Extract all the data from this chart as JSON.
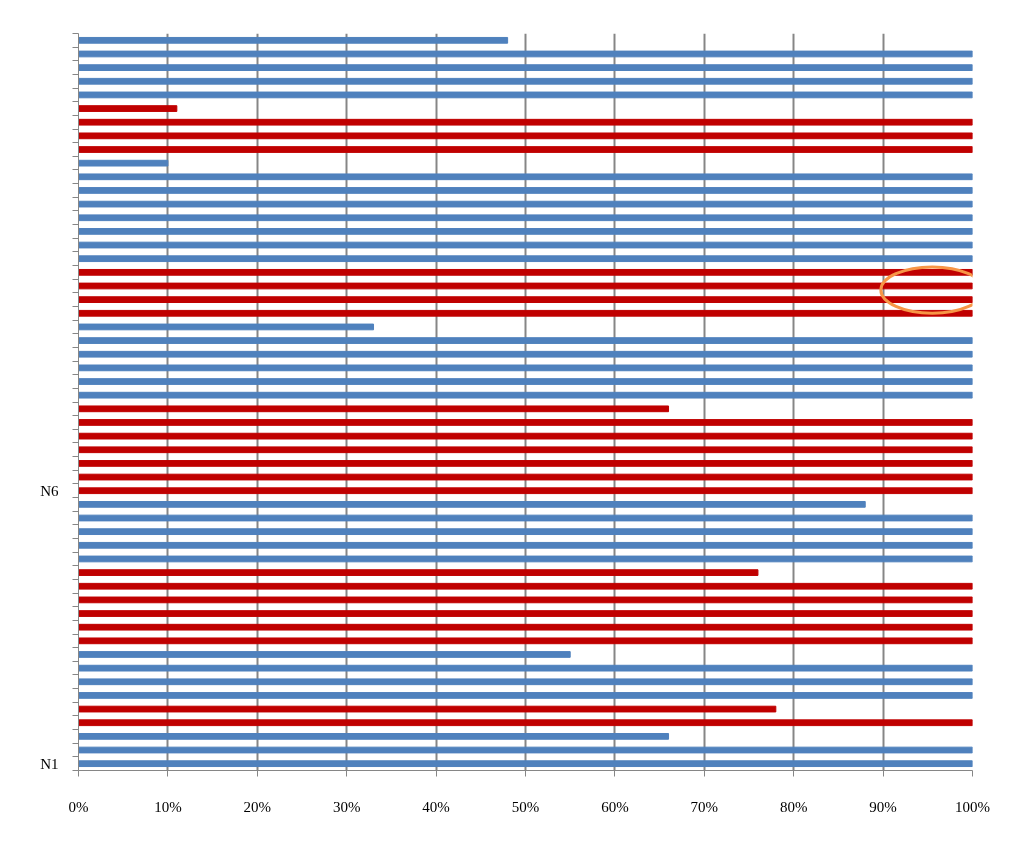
{
  "chart_data": {
    "type": "bar",
    "orientation": "horizontal",
    "categories": [
      null,
      null,
      null,
      null,
      null,
      null,
      null,
      null,
      null,
      null,
      null,
      null,
      null,
      null,
      null,
      null,
      null,
      null,
      null,
      null,
      null,
      null,
      null,
      null,
      null,
      null,
      null,
      null,
      null,
      null,
      null,
      null,
      null,
      "N6",
      null,
      null,
      null,
      null,
      null,
      null,
      null,
      null,
      null,
      null,
      null,
      null,
      null,
      null,
      null,
      null,
      null,
      null,
      null,
      "N1"
    ],
    "values": [
      48,
      100,
      100,
      100,
      100,
      11,
      100,
      100,
      100,
      10,
      100,
      100,
      100,
      100,
      100,
      100,
      100,
      100,
      100,
      100,
      100,
      33,
      100,
      100,
      100,
      100,
      100,
      66,
      100,
      100,
      100,
      100,
      100,
      100,
      88,
      100,
      100,
      100,
      100,
      76,
      100,
      100,
      100,
      100,
      100,
      55,
      100,
      100,
      100,
      78,
      100,
      66,
      100,
      100
    ],
    "colors": [
      "#4f81bd",
      "#4f81bd",
      "#4f81bd",
      "#4f81bd",
      "#4f81bd",
      "#c00000",
      "#c00000",
      "#c00000",
      "#c00000",
      "#4f81bd",
      "#4f81bd",
      "#4f81bd",
      "#4f81bd",
      "#4f81bd",
      "#4f81bd",
      "#4f81bd",
      "#4f81bd",
      "#c00000",
      "#c00000",
      "#c00000",
      "#c00000",
      "#4f81bd",
      "#4f81bd",
      "#4f81bd",
      "#4f81bd",
      "#4f81bd",
      "#4f81bd",
      "#c00000",
      "#c00000",
      "#c00000",
      "#c00000",
      "#c00000",
      "#c00000",
      "#c00000",
      "#4f81bd",
      "#4f81bd",
      "#4f81bd",
      "#4f81bd",
      "#4f81bd",
      "#c00000",
      "#c00000",
      "#c00000",
      "#c00000",
      "#c00000",
      "#c00000",
      "#4f81bd",
      "#4f81bd",
      "#4f81bd",
      "#4f81bd",
      "#c00000",
      "#c00000",
      "#4f81bd",
      "#4f81bd",
      "#4f81bd"
    ],
    "xlim": [
      0,
      100
    ],
    "xticks": [
      {
        "value": 0,
        "label": "0%"
      },
      {
        "value": 10,
        "label": "10%"
      },
      {
        "value": 20,
        "label": "20%"
      },
      {
        "value": 30,
        "label": "30%"
      },
      {
        "value": 40,
        "label": "40%"
      },
      {
        "value": 50,
        "label": "50%"
      },
      {
        "value": 60,
        "label": "60%"
      },
      {
        "value": 70,
        "label": "70%"
      },
      {
        "value": 80,
        "label": "80%"
      },
      {
        "value": 90,
        "label": "90%"
      },
      {
        "value": 100,
        "label": "100%"
      }
    ],
    "grid": "x"
  }
}
